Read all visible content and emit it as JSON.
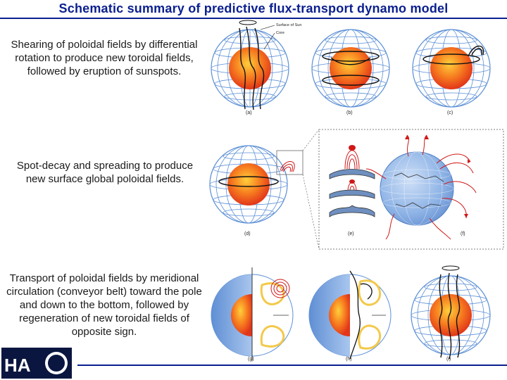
{
  "title": "Schematic summary of predictive flux-transport dynamo model",
  "captions": {
    "shearing": "Shearing of poloidal fields by differential rotation to produce new toroidal fields, followed by eruption of sunspots.",
    "decay": "Spot-decay and spreading to produce new surface global poloidal fields.",
    "transport": "Transport of poloidal fields by meridional circulation (conveyor belt) toward the pole and down to the bottom, followed by regeneration of new toroidal fields of opposite sign."
  },
  "labels": {
    "surface": "Surface of Sun",
    "core": "Core",
    "panels": [
      "(a)",
      "(b)",
      "(c)",
      "(d)",
      "(e)",
      "(f)",
      "(g)",
      "(h)",
      "(i)"
    ]
  },
  "logo": {
    "text": "HA"
  },
  "colors": {
    "title": "#0a1f8f",
    "grid": "#5b8fd6",
    "core": "#f0521c",
    "core_glow": "#ffb21c",
    "field": "#111111",
    "red_field": "#d01818",
    "sphere_blue": "#7fa9e3",
    "conveyor": "#f3c94a"
  },
  "icons": [
    "sun-sphere-icon",
    "field-loop-icon",
    "conveyor-belt-icon",
    "hao-logo"
  ]
}
